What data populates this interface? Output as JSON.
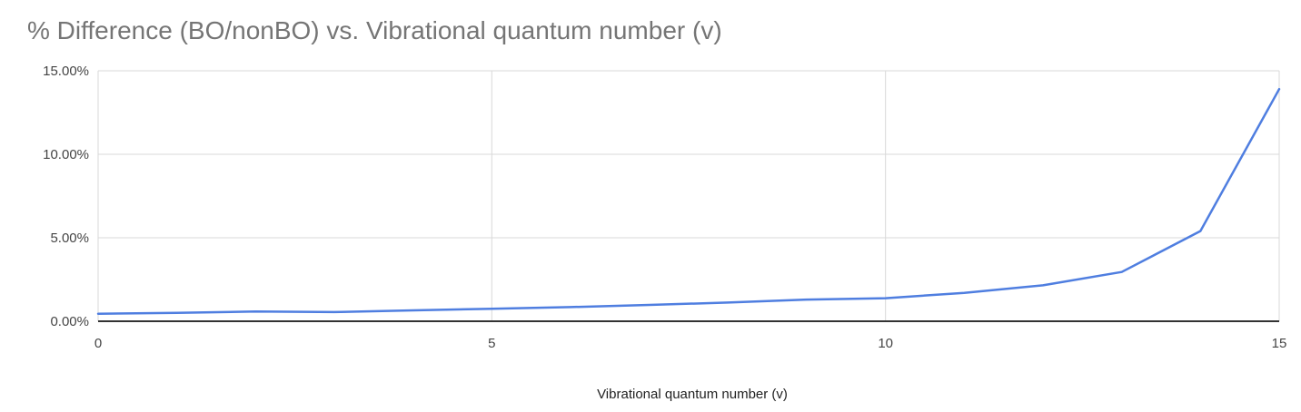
{
  "chart_data": {
    "type": "line",
    "title": "% Difference (BO/nonBO) vs. Vibrational quantum number (v)",
    "xlabel": "Vibrational quantum number (v)",
    "ylabel": "",
    "x": [
      0,
      1,
      2,
      3,
      4,
      5,
      6,
      7,
      8,
      9,
      10,
      11,
      12,
      13,
      14,
      15
    ],
    "series": [
      {
        "name": "",
        "values": [
          0.45,
          0.5,
          0.58,
          0.55,
          0.65,
          0.75,
          0.85,
          0.98,
          1.12,
          1.3,
          1.38,
          1.7,
          2.15,
          2.95,
          5.4,
          13.9
        ],
        "color": "#4f7ee0"
      }
    ],
    "xlim": [
      0,
      15
    ],
    "ylim": [
      0,
      15
    ],
    "xticks": [
      0,
      5,
      10,
      15
    ],
    "xtick_labels": [
      "0",
      "5",
      "10",
      "15"
    ],
    "yticks": [
      0,
      5,
      10,
      15
    ],
    "ytick_labels": [
      "0.00%",
      "5.00%",
      "10.00%",
      "15.00%"
    ],
    "grid": true,
    "legend": "none"
  }
}
